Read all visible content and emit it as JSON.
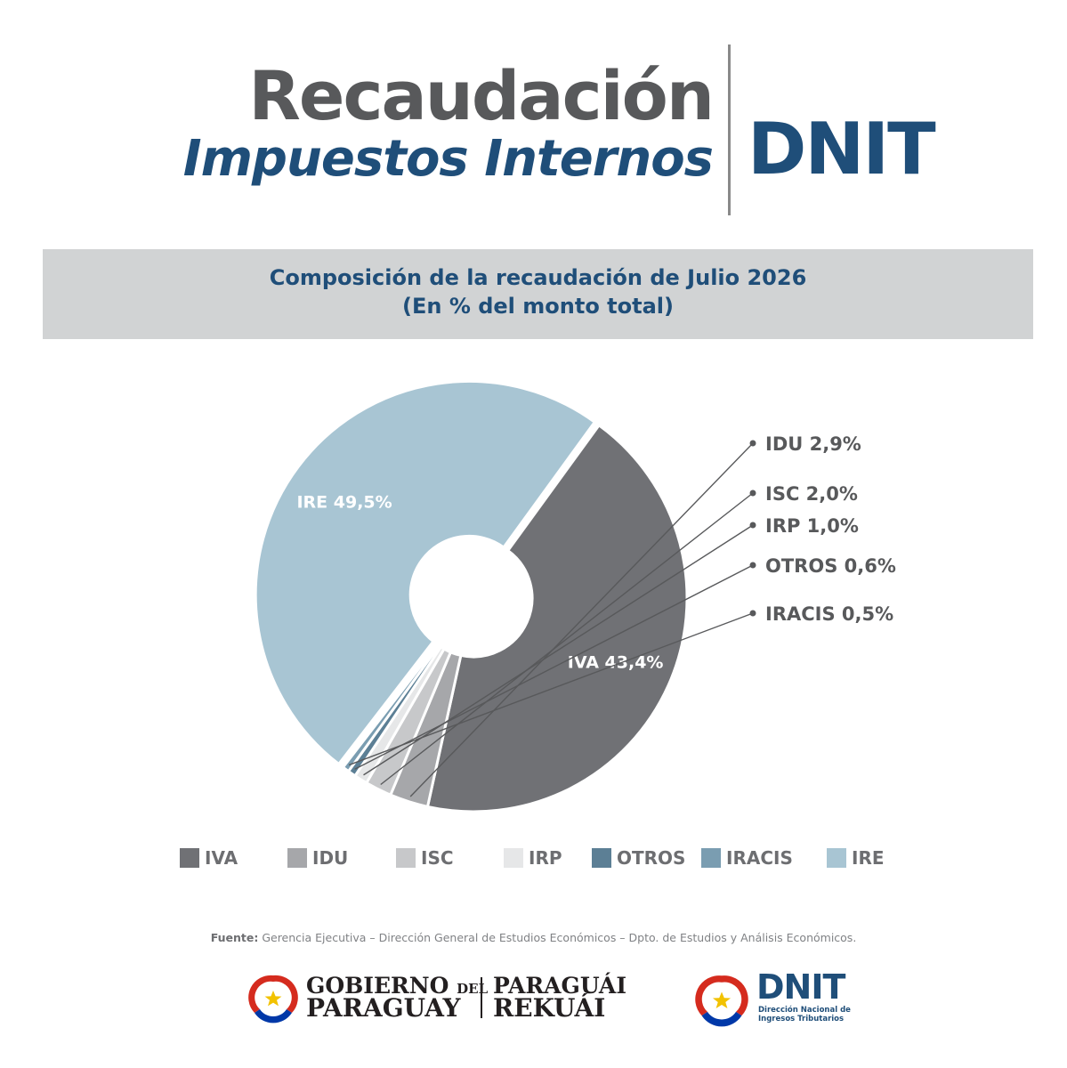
{
  "header": {
    "title_line1": "Recaudación",
    "title_line2": "Impuestos Internos",
    "brand": "DNIT"
  },
  "banner": {
    "line1": "Composición de la recaudación de Julio 2026",
    "line2": "(En % del monto total)"
  },
  "chart_data": {
    "type": "pie",
    "title": "Composición de la recaudación de Julio 2026",
    "subtitle": "(En % del monto total)",
    "donut": true,
    "unit": "%",
    "legend_position": "bottom",
    "slices": [
      {
        "name": "IVA",
        "value": 43.4,
        "label": "IVA 43,4%",
        "color": "#707175",
        "label_placement": "inside"
      },
      {
        "name": "IDU",
        "value": 2.9,
        "label": "IDU 2,9%",
        "color": "#a6a7aa",
        "label_placement": "outside"
      },
      {
        "name": "ISC",
        "value": 2.0,
        "label": "ISC 2,0%",
        "color": "#c7c8ca",
        "label_placement": "outside"
      },
      {
        "name": "IRP",
        "value": 1.0,
        "label": "IRP 1,0%",
        "color": "#e6e7e8",
        "label_placement": "outside"
      },
      {
        "name": "OTROS",
        "value": 0.6,
        "label": "OTROS 0,6%",
        "color": "#5c7f95",
        "label_placement": "outside"
      },
      {
        "name": "IRACIS",
        "value": 0.5,
        "label": "IRACIS 0,5%",
        "color": "#7a9db1",
        "label_placement": "outside"
      },
      {
        "name": "IRE",
        "value": 49.5,
        "label": "IRE 49,5%",
        "color": "#a8c5d3",
        "label_placement": "inside"
      }
    ]
  },
  "legend": {
    "items": [
      {
        "label": "IVA",
        "color": "#707175"
      },
      {
        "label": "IDU",
        "color": "#a6a7aa"
      },
      {
        "label": "ISC",
        "color": "#c7c8ca"
      },
      {
        "label": "IRP",
        "color": "#e6e7e8"
      },
      {
        "label": "OTROS",
        "color": "#5c7f95"
      },
      {
        "label": "IRACIS",
        "color": "#7a9db1"
      },
      {
        "label": "IRE",
        "color": "#a8c5d3"
      }
    ]
  },
  "source": {
    "label": "Fuente:",
    "text": " Gerencia Ejecutiva – Dirección General de Estudios Económicos – Dpto. de Estudios y Análisis Económicos."
  },
  "footer": {
    "gov_line1": "GOBIERNO",
    "gov_line1_small": "DEL",
    "gov_line2": "PARAGUAY",
    "motto_line1": "PARAGUÁI",
    "motto_line2": "REKUÁI",
    "dnit_logo": "DNIT",
    "dnit_sub_line1": "Dirección Nacional de",
    "dnit_sub_line2": "Ingresos Tributarios"
  },
  "colors": {
    "brand_blue": "#1f4e79",
    "header_gray": "#58595b",
    "banner_bg": "#d1d3d4"
  }
}
